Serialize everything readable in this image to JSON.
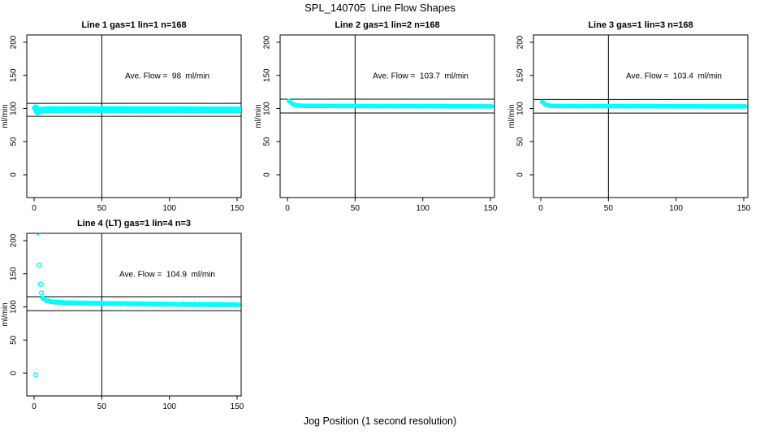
{
  "chart_data": {
    "type": "scatter",
    "title": "SPL_140705  Line Flow Shapes",
    "xlabel": "Jog Position (1 second resolution)",
    "ylabel": "ml/min",
    "x_ticks": [
      0,
      50,
      100,
      150
    ],
    "y_ticks": [
      0,
      50,
      100,
      150,
      200
    ],
    "xlim": [
      -5,
      153
    ],
    "ylim": [
      -34,
      211
    ],
    "grid": false,
    "legend_position": "none",
    "marker": "open-circle",
    "marker_color": "#00FFFF",
    "axis_color": "#000000",
    "panels": [
      {
        "id": "line-1",
        "title": "Line 1 gas=1 lin=1 n=168",
        "annotation": "Ave. Flow =  98  ml/min",
        "ave_flow_ml_min": 98,
        "n_traces": 168,
        "vline_x": 50,
        "hlines": [
          107.8,
          88.2
        ],
        "band_halfwidth": 5.2,
        "draw_markers": false,
        "profile": [
          [
            1,
            100.8
          ],
          [
            1.8,
            99
          ],
          [
            2.6,
            94.8
          ],
          [
            3.6,
            96.2
          ],
          [
            5,
            97.4
          ],
          [
            8,
            98
          ],
          [
            15,
            98.3
          ],
          [
            40,
            98.3
          ],
          [
            70,
            98.1
          ],
          [
            100,
            98
          ],
          [
            130,
            97.9
          ],
          [
            151,
            97.8
          ]
        ],
        "outliers": []
      },
      {
        "id": "line-2",
        "title": "Line 2 gas=1 lin=2 n=168",
        "annotation": "Ave. Flow =  103.7  ml/min",
        "ave_flow_ml_min": 103.7,
        "n_traces": 168,
        "vline_x": 50,
        "hlines": [
          114.1,
          93.3
        ],
        "band_halfwidth": 3.4,
        "draw_markers": false,
        "profile": [
          [
            1,
            111.5
          ],
          [
            2,
            110
          ],
          [
            3,
            108
          ],
          [
            4,
            106.5
          ],
          [
            6,
            105
          ],
          [
            9,
            104.3
          ],
          [
            15,
            104
          ],
          [
            40,
            103.8
          ],
          [
            80,
            103.6
          ],
          [
            120,
            103.4
          ],
          [
            151,
            103.2
          ]
        ],
        "outliers": []
      },
      {
        "id": "line-3",
        "title": "Line 3 gas=1 lin=3 n=168",
        "annotation": "Ave. Flow =  103.4  ml/min",
        "ave_flow_ml_min": 103.4,
        "n_traces": 168,
        "vline_x": 50,
        "hlines": [
          113.7,
          93.1
        ],
        "band_halfwidth": 3.4,
        "draw_markers": false,
        "profile": [
          [
            1,
            110
          ],
          [
            2,
            108.5
          ],
          [
            3,
            106.5
          ],
          [
            5,
            104.8
          ],
          [
            8,
            104
          ],
          [
            15,
            103.7
          ],
          [
            50,
            103.5
          ],
          [
            100,
            103.4
          ],
          [
            151,
            103.2
          ]
        ],
        "outliers": []
      },
      {
        "id": "line-4",
        "title": "Line 4 (LT) gas=1 lin=4 n=3",
        "annotation": "Ave. Flow =  104.9  ml/min",
        "ave_flow_ml_min": 104.9,
        "n_traces": 3,
        "vline_x": 50,
        "hlines": [
          115.4,
          94.4
        ],
        "band_halfwidth": 2.6,
        "draw_markers": true,
        "profile": [
          [
            6.3,
            113.5
          ],
          [
            7.5,
            111.5
          ],
          [
            9,
            110
          ],
          [
            11,
            108.5
          ],
          [
            14,
            107.5
          ],
          [
            18,
            106.8
          ],
          [
            25,
            106.2
          ],
          [
            35,
            105.6
          ],
          [
            50,
            105.2
          ],
          [
            70,
            104.8
          ],
          [
            90,
            104.3
          ],
          [
            110,
            103.9
          ],
          [
            130,
            103.6
          ],
          [
            151,
            103.3
          ]
        ],
        "outliers": [
          [
            1.2,
            -3
          ],
          [
            2.8,
            212
          ],
          [
            3.8,
            163
          ],
          [
            4.8,
            134
          ],
          [
            5.4,
            121
          ]
        ]
      }
    ]
  }
}
